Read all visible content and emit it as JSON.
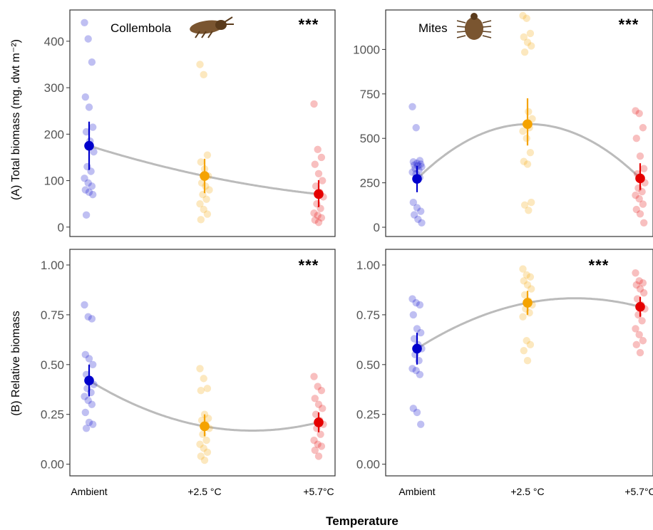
{
  "figure": {
    "x_title": "Temperature",
    "ylabel_top": "(A) Total biomass (mg, dwt m⁻²)",
    "ylabel_bottom": "(B) Relative biomass"
  },
  "colors": {
    "ambient": "#0000cc",
    "plus25": "#f5a300",
    "plus57": "#e50000",
    "fit": "#bbbbbb",
    "frame": "#333333"
  },
  "icons": [
    "collembola-icon",
    "mite-icon"
  ],
  "chart_data": [
    {
      "id": "collembola-total",
      "type": "scatter",
      "label": "Collembola",
      "significance": "***",
      "categories": [
        "Ambient",
        "+2.5 °C",
        "+5.7°C"
      ],
      "yticks": [
        "0",
        "100",
        "200",
        "300",
        "400"
      ],
      "ylim": [
        -8,
        455
      ],
      "points": [
        [
          440,
          405,
          355,
          280,
          258,
          215,
          205,
          185,
          162,
          130,
          120,
          105,
          95,
          88,
          80,
          75,
          70,
          26
        ],
        [
          350,
          328,
          155,
          140,
          125,
          110,
          95,
          88,
          80,
          70,
          60,
          50,
          38,
          28,
          16
        ],
        [
          265,
          167,
          150,
          135,
          115,
          100,
          88,
          75,
          65,
          50,
          40,
          30,
          25,
          20,
          15,
          10
        ]
      ],
      "means": [
        175,
        110,
        71
      ],
      "ci": [
        [
          123,
          227
        ],
        [
          73,
          147
        ],
        [
          43,
          101
        ]
      ],
      "fit": "quadratic"
    },
    {
      "id": "mites-total",
      "type": "scatter",
      "label": "Mites",
      "significance": "***",
      "categories": [
        "Ambient",
        "+2.5 °C",
        "+5.7°C"
      ],
      "yticks": [
        "0",
        "250",
        "500",
        "750",
        "1000"
      ],
      "ylim": [
        -20,
        1190
      ],
      "points": [
        [
          678,
          560,
          375,
          368,
          360,
          355,
          350,
          345,
          340,
          330,
          320,
          310,
          300,
          280,
          140,
          110,
          90,
          70,
          45,
          25
        ],
        [
          1190,
          1175,
          1090,
          1070,
          1040,
          1020,
          985,
          650,
          610,
          580,
          560,
          540,
          500,
          420,
          370,
          355,
          140,
          125,
          95
        ],
        [
          655,
          640,
          560,
          500,
          400,
          330,
          300,
          270,
          250,
          220,
          200,
          180,
          160,
          130,
          100,
          75,
          25
        ]
      ],
      "means": [
        272,
        580,
        275
      ],
      "ci": [
        [
          197,
          345
        ],
        [
          460,
          725
        ],
        [
          210,
          360
        ]
      ],
      "fit": "quadratic"
    },
    {
      "id": "collembola-relative",
      "type": "scatter",
      "significance": "***",
      "categories": [
        "Ambient",
        "+2.5 °C",
        "+5.7°C"
      ],
      "yticks": [
        "0.00",
        "0.25",
        "0.50",
        "0.75",
        "1.00"
      ],
      "ylim": [
        -0.03,
        1.05
      ],
      "points": [
        [
          0.8,
          0.74,
          0.73,
          0.55,
          0.53,
          0.5,
          0.45,
          0.42,
          0.4,
          0.38,
          0.36,
          0.34,
          0.32,
          0.3,
          0.26,
          0.21,
          0.2,
          0.18
        ],
        [
          0.48,
          0.43,
          0.38,
          0.37,
          0.25,
          0.23,
          0.22,
          0.2,
          0.18,
          0.15,
          0.12,
          0.1,
          0.08,
          0.06,
          0.04,
          0.02
        ],
        [
          0.44,
          0.39,
          0.37,
          0.33,
          0.3,
          0.28,
          0.25,
          0.22,
          0.2,
          0.18,
          0.15,
          0.12,
          0.1,
          0.09,
          0.07,
          0.04
        ]
      ],
      "means": [
        0.42,
        0.19,
        0.21
      ],
      "ci": [
        [
          0.34,
          0.5
        ],
        [
          0.14,
          0.25
        ],
        [
          0.16,
          0.26
        ]
      ],
      "fit": "quadratic"
    },
    {
      "id": "mites-relative",
      "type": "scatter",
      "significance": "***",
      "categories": [
        "Ambient",
        "+2.5 °C",
        "+5.7°C"
      ],
      "yticks": [
        "0.00",
        "0.25",
        "0.50",
        "0.75",
        "1.00"
      ],
      "ylim": [
        -0.03,
        1.05
      ],
      "points": [
        [
          0.83,
          0.81,
          0.8,
          0.75,
          0.68,
          0.66,
          0.63,
          0.6,
          0.58,
          0.55,
          0.52,
          0.48,
          0.47,
          0.45,
          0.28,
          0.26,
          0.2
        ],
        [
          0.98,
          0.95,
          0.94,
          0.92,
          0.9,
          0.88,
          0.85,
          0.82,
          0.8,
          0.78,
          0.76,
          0.74,
          0.62,
          0.6,
          0.57,
          0.52
        ],
        [
          0.96,
          0.92,
          0.91,
          0.9,
          0.88,
          0.86,
          0.83,
          0.8,
          0.78,
          0.75,
          0.72,
          0.68,
          0.65,
          0.62,
          0.6,
          0.56
        ]
      ],
      "means": [
        0.58,
        0.81,
        0.79
      ],
      "ci": [
        [
          0.5,
          0.66
        ],
        [
          0.75,
          0.87
        ],
        [
          0.74,
          0.84
        ]
      ],
      "fit": "quadratic"
    }
  ]
}
